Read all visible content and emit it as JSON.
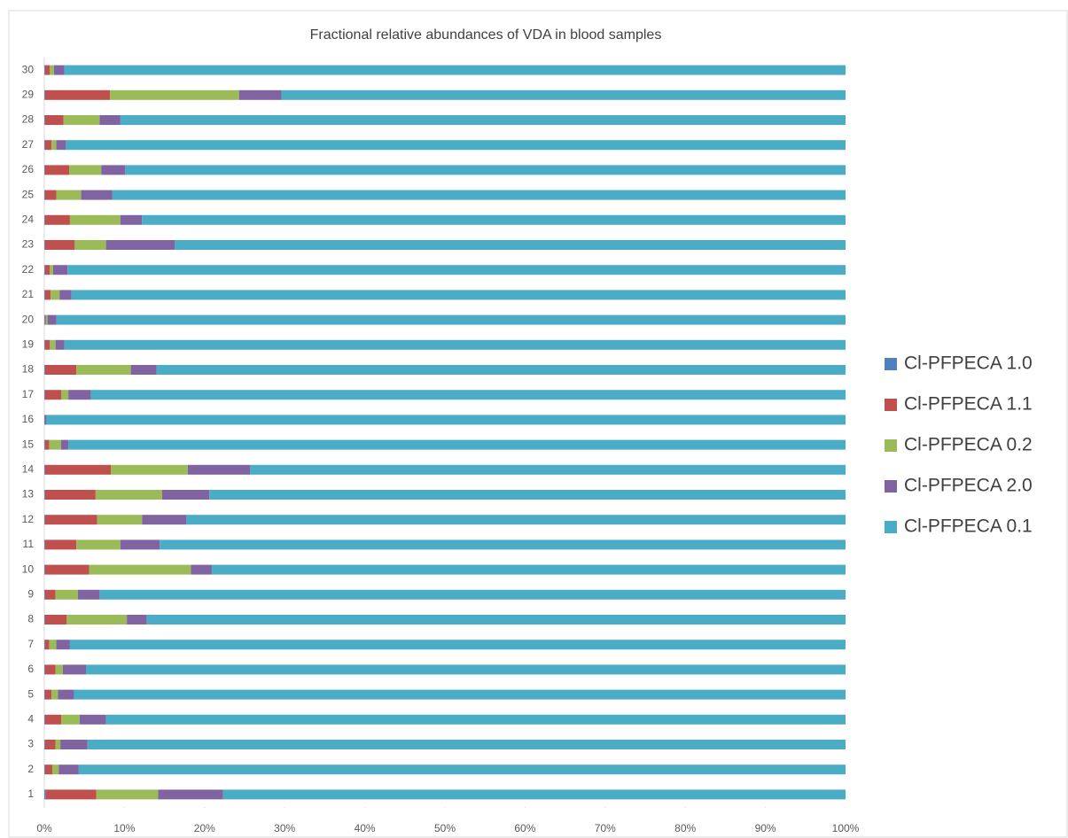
{
  "chart_data": {
    "type": "stacked_barh",
    "title": "Fractional relative abundances of VDA in blood samples",
    "categories": [
      "1",
      "2",
      "3",
      "4",
      "5",
      "6",
      "7",
      "8",
      "9",
      "10",
      "11",
      "12",
      "13",
      "14",
      "15",
      "16",
      "17",
      "18",
      "19",
      "20",
      "21",
      "22",
      "23",
      "24",
      "25",
      "26",
      "27",
      "28",
      "29",
      "30"
    ],
    "series": [
      {
        "name": "Cl-PFPECA 1.0",
        "color": "#4f81bd",
        "values": [
          0.2,
          0.1,
          0.1,
          0.1,
          0.1,
          0.1,
          0.1,
          0.1,
          0.1,
          0.1,
          0.1,
          0.1,
          0.1,
          0.1,
          0.1,
          0.1,
          0.1,
          0.1,
          0.1,
          0.1,
          0.1,
          0.1,
          0.1,
          0.1,
          0.1,
          0.1,
          0.1,
          0.1,
          0.1,
          0.1
        ]
      },
      {
        "name": "Cl-PFPECA 1.1",
        "color": "#c0504d",
        "values": [
          6.3,
          0.9,
          1.3,
          2.0,
          0.8,
          1.3,
          0.5,
          2.7,
          1.3,
          5.5,
          3.9,
          6.5,
          6.3,
          8.2,
          0.5,
          0,
          2.0,
          3.9,
          0.6,
          0.1,
          0.7,
          0.6,
          3.7,
          3.1,
          1.4,
          3.0,
          0.8,
          2.3,
          8.1,
          0.6
        ]
      },
      {
        "name": "Cl-PFPECA 0.2",
        "color": "#9bbb59",
        "values": [
          7.7,
          0.8,
          0.6,
          2.3,
          0.8,
          0.9,
          0.9,
          7.5,
          2.8,
          12.7,
          5.5,
          5.6,
          8.3,
          9.6,
          1.5,
          0,
          0.9,
          6.8,
          0.7,
          0.2,
          1.1,
          0.4,
          3.9,
          6.3,
          3.1,
          4.0,
          0.6,
          4.5,
          16.1,
          0.5
        ]
      },
      {
        "name": "Cl-PFPECA 2.0",
        "color": "#8064a2",
        "values": [
          8.1,
          2.5,
          3.4,
          3.3,
          2.0,
          2.9,
          1.7,
          2.5,
          2.7,
          2.6,
          4.9,
          5.5,
          5.9,
          7.8,
          0.9,
          0.2,
          2.8,
          3.2,
          1.1,
          1.1,
          1.5,
          1.8,
          8.6,
          2.7,
          3.9,
          3.0,
          1.2,
          2.6,
          5.3,
          1.3
        ]
      },
      {
        "name": "Cl-PFPECA 0.1",
        "color": "#4bacc6",
        "values": [
          77.7,
          95.7,
          94.6,
          92.3,
          96.3,
          94.8,
          96.8,
          87.2,
          93.1,
          79.1,
          85.6,
          82.3,
          79.4,
          74.3,
          97.0,
          99.7,
          94.2,
          86.0,
          97.5,
          98.5,
          96.6,
          97.1,
          83.7,
          87.8,
          91.5,
          89.9,
          97.3,
          90.5,
          70.4,
          97.5
        ]
      }
    ],
    "xlim": [
      0,
      100
    ],
    "xticks": [
      {
        "value": 0,
        "label": "0%"
      },
      {
        "value": 10,
        "label": "10%"
      },
      {
        "value": 20,
        "label": "20%"
      },
      {
        "value": 30,
        "label": "30%"
      },
      {
        "value": 40,
        "label": "40%"
      },
      {
        "value": 50,
        "label": "50%"
      },
      {
        "value": 60,
        "label": "60%"
      },
      {
        "value": 70,
        "label": "70%"
      },
      {
        "value": 80,
        "label": "80%"
      },
      {
        "value": 90,
        "label": "90%"
      },
      {
        "value": 100,
        "label": "100%"
      }
    ],
    "legend": "right"
  }
}
